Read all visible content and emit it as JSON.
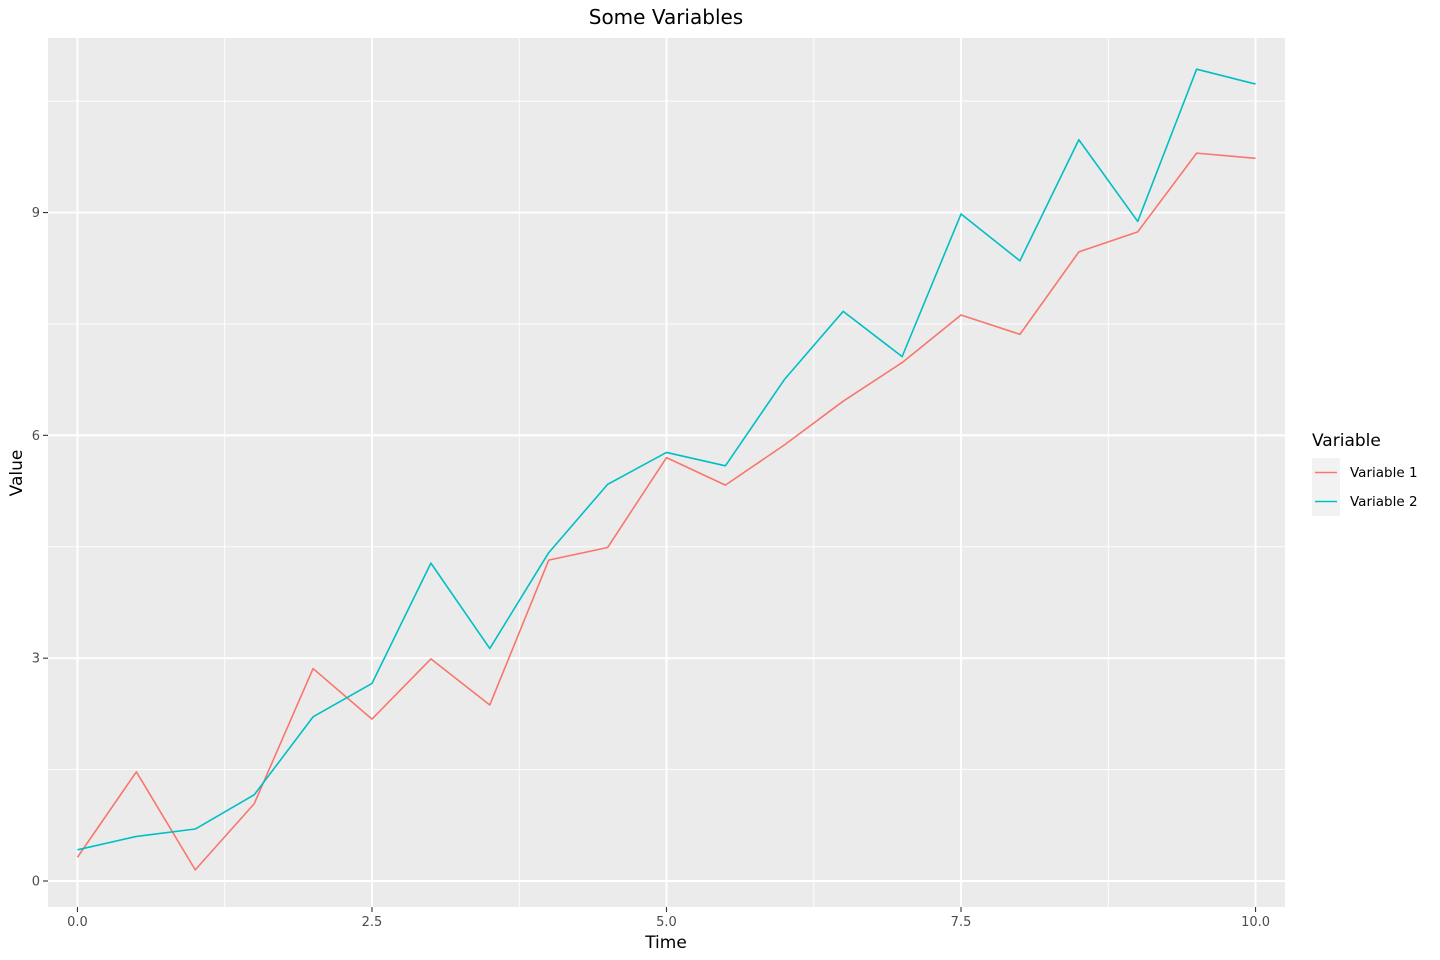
{
  "chart_data": {
    "type": "line",
    "title": "Some Variables",
    "xlabel": "Time",
    "ylabel": "Value",
    "xlim": [
      -0.25,
      10.25
    ],
    "ylim": [
      -0.35,
      11.35
    ],
    "x_ticks": [
      0,
      2.5,
      5,
      7.5,
      10
    ],
    "x_tick_labels": [
      "0.0",
      "2.5",
      "5.0",
      "7.5",
      "10.0"
    ],
    "y_ticks": [
      0,
      3,
      6,
      9
    ],
    "y_tick_labels": [
      "0",
      "3",
      "6",
      "9"
    ],
    "grid": true,
    "legend": {
      "title": "Variable",
      "position": "right"
    },
    "x": [
      0,
      0.5,
      1,
      1.5,
      2,
      2.5,
      3,
      3.5,
      4,
      4.5,
      5,
      5.5,
      6,
      6.5,
      7,
      7.5,
      8,
      8.5,
      9,
      9.5,
      10
    ],
    "series": [
      {
        "name": "Variable 1",
        "color": "#F8766D",
        "values": [
          0.32,
          1.47,
          0.15,
          1.04,
          2.86,
          2.18,
          2.99,
          2.37,
          4.32,
          4.49,
          5.7,
          5.33,
          5.87,
          6.46,
          6.98,
          7.62,
          7.36,
          8.47,
          8.74,
          9.8,
          9.73
        ]
      },
      {
        "name": "Variable 2",
        "color": "#00BFC4",
        "values": [
          0.42,
          0.6,
          0.7,
          1.16,
          2.21,
          2.66,
          4.28,
          3.13,
          4.42,
          5.34,
          5.77,
          5.59,
          6.75,
          7.67,
          7.06,
          8.98,
          8.35,
          9.98,
          8.88,
          10.93,
          10.73
        ]
      }
    ]
  }
}
